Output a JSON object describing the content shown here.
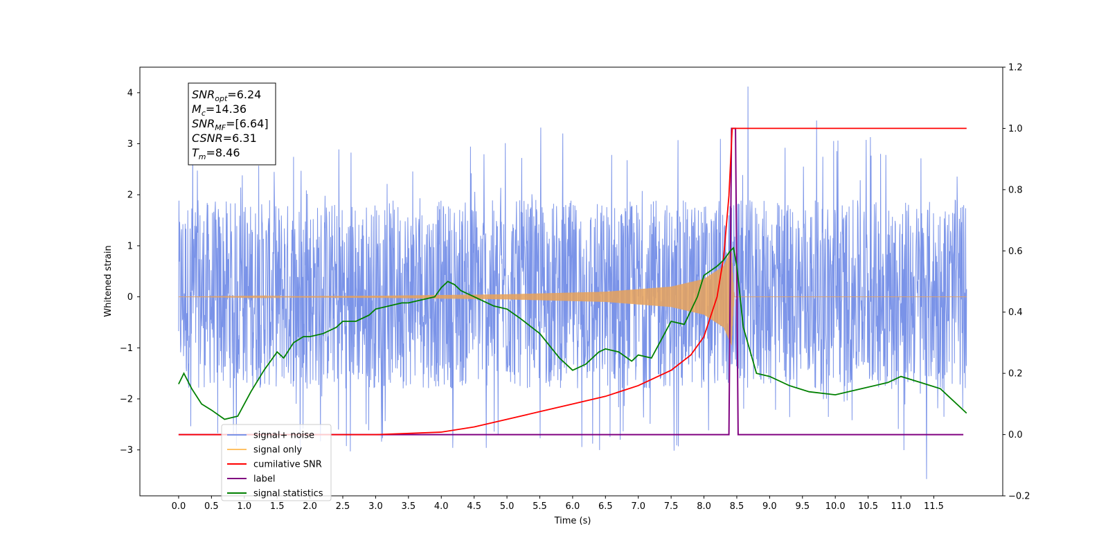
{
  "chart_data": {
    "type": "line",
    "xlabel": "Time (s)",
    "ylabel": "Whitened strain",
    "xlim": [
      -0.59,
      12.55
    ],
    "ylim_left": [
      -3.9,
      4.5
    ],
    "ylim_right": [
      -0.2,
      1.2
    ],
    "x_ticks": [
      "0.0",
      "0.5",
      "1.0",
      "1.5",
      "2.0",
      "2.5",
      "3.0",
      "3.5",
      "4.0",
      "4.5",
      "5.0",
      "5.5",
      "6.0",
      "6.5",
      "7.0",
      "7.5",
      "8.0",
      "8.5",
      "9.0",
      "9.5",
      "10.0",
      "10.5",
      "11.0",
      "11.5"
    ],
    "y_ticks_left": [
      "−3",
      "−2",
      "−1",
      "0",
      "1",
      "2",
      "3",
      "4"
    ],
    "y_ticks_right": [
      "−0.2",
      "0.0",
      "0.2",
      "0.4",
      "0.6",
      "0.8",
      "1.0",
      "1.2"
    ],
    "noise": {
      "x_range": [
        0.0,
        12.0
      ],
      "typical_range": [
        -1.8,
        1.9
      ],
      "max_value": 4.12,
      "max_at": 8.67,
      "min_value": -3.57,
      "min_at": 11.39
    },
    "signal_only": {
      "axis": "left",
      "x_range": [
        0.0,
        12.0
      ],
      "envelope": [
        [
          0.0,
          0.0
        ],
        [
          3.0,
          0.02
        ],
        [
          5.0,
          0.05
        ],
        [
          6.5,
          0.1
        ],
        [
          7.5,
          0.2
        ],
        [
          8.0,
          0.35
        ],
        [
          8.3,
          0.6
        ],
        [
          8.42,
          0.95
        ],
        [
          8.46,
          0.0
        ],
        [
          12.0,
          0.0
        ]
      ]
    },
    "cumulative_snr": {
      "axis": "right",
      "x": [
        0.0,
        3.0,
        4.0,
        4.5,
        5.0,
        5.5,
        6.0,
        6.5,
        7.0,
        7.5,
        7.8,
        8.0,
        8.2,
        8.3,
        8.38,
        8.43,
        8.45,
        11.5,
        12.0
      ],
      "y": [
        0.0,
        0.0,
        0.008,
        0.025,
        0.05,
        0.075,
        0.1,
        0.125,
        0.16,
        0.21,
        0.26,
        0.32,
        0.45,
        0.58,
        0.78,
        1.0,
        1.0,
        1.0,
        1.0
      ]
    },
    "label": {
      "axis": "right",
      "x": [
        0.0,
        8.38,
        8.42,
        8.48,
        8.52,
        11.95
      ],
      "y": [
        0.0,
        0.0,
        1.0,
        1.0,
        0.0,
        0.0
      ]
    },
    "signal_statistics": {
      "axis": "right",
      "x": [
        0.0,
        0.08,
        0.2,
        0.35,
        0.5,
        0.7,
        0.9,
        1.1,
        1.3,
        1.5,
        1.6,
        1.75,
        1.9,
        2.0,
        2.2,
        2.4,
        2.5,
        2.7,
        2.9,
        3.0,
        3.2,
        3.4,
        3.5,
        3.7,
        3.9,
        4.0,
        4.1,
        4.2,
        4.3,
        4.5,
        4.8,
        5.0,
        5.2,
        5.5,
        5.8,
        6.0,
        6.2,
        6.4,
        6.5,
        6.7,
        6.9,
        7.0,
        7.2,
        7.4,
        7.5,
        7.7,
        7.9,
        8.0,
        8.2,
        8.3,
        8.4,
        8.45,
        8.5,
        8.6,
        8.8,
        9.0,
        9.3,
        9.6,
        10.0,
        10.4,
        10.8,
        11.0,
        11.3,
        11.6,
        12.0
      ],
      "y": [
        0.165,
        0.2,
        0.15,
        0.1,
        0.08,
        0.05,
        0.06,
        0.14,
        0.21,
        0.27,
        0.25,
        0.3,
        0.32,
        0.32,
        0.33,
        0.35,
        0.37,
        0.37,
        0.39,
        0.41,
        0.42,
        0.43,
        0.43,
        0.44,
        0.45,
        0.48,
        0.5,
        0.49,
        0.47,
        0.45,
        0.42,
        0.41,
        0.38,
        0.33,
        0.25,
        0.21,
        0.23,
        0.27,
        0.28,
        0.27,
        0.24,
        0.26,
        0.25,
        0.33,
        0.37,
        0.36,
        0.45,
        0.52,
        0.55,
        0.57,
        0.6,
        0.61,
        0.55,
        0.35,
        0.2,
        0.19,
        0.16,
        0.14,
        0.13,
        0.15,
        0.17,
        0.19,
        0.17,
        0.15,
        0.07
      ]
    },
    "legend": {
      "placement": "lower-left",
      "entries": [
        {
          "label": "signal+ noise",
          "color": "#7a93e8"
        },
        {
          "label": "signal only",
          "color": "#ffc165"
        },
        {
          "label": "cumilative SNR",
          "color": "#ff0000"
        },
        {
          "label": "label",
          "color": "#800080"
        },
        {
          "label": "signal statistics",
          "color": "#008000"
        }
      ]
    },
    "annotations": [
      {
        "name": "SNR",
        "sub": "opt",
        "value": "=6.24"
      },
      {
        "name": "M",
        "sub": "c",
        "value": "=14.36"
      },
      {
        "name": "SNR",
        "sub": "MF",
        "value": "=[6.64]"
      },
      {
        "name": "CSNR",
        "sub": "",
        "value": "=6.31"
      },
      {
        "name": "T",
        "sub": "m",
        "value": "=8.46"
      }
    ],
    "colors": {
      "noise": "#7a93e8",
      "signal": "#e8a25a",
      "cumulative": "#ff0000",
      "label": "#800080",
      "statistics": "#008000"
    }
  }
}
